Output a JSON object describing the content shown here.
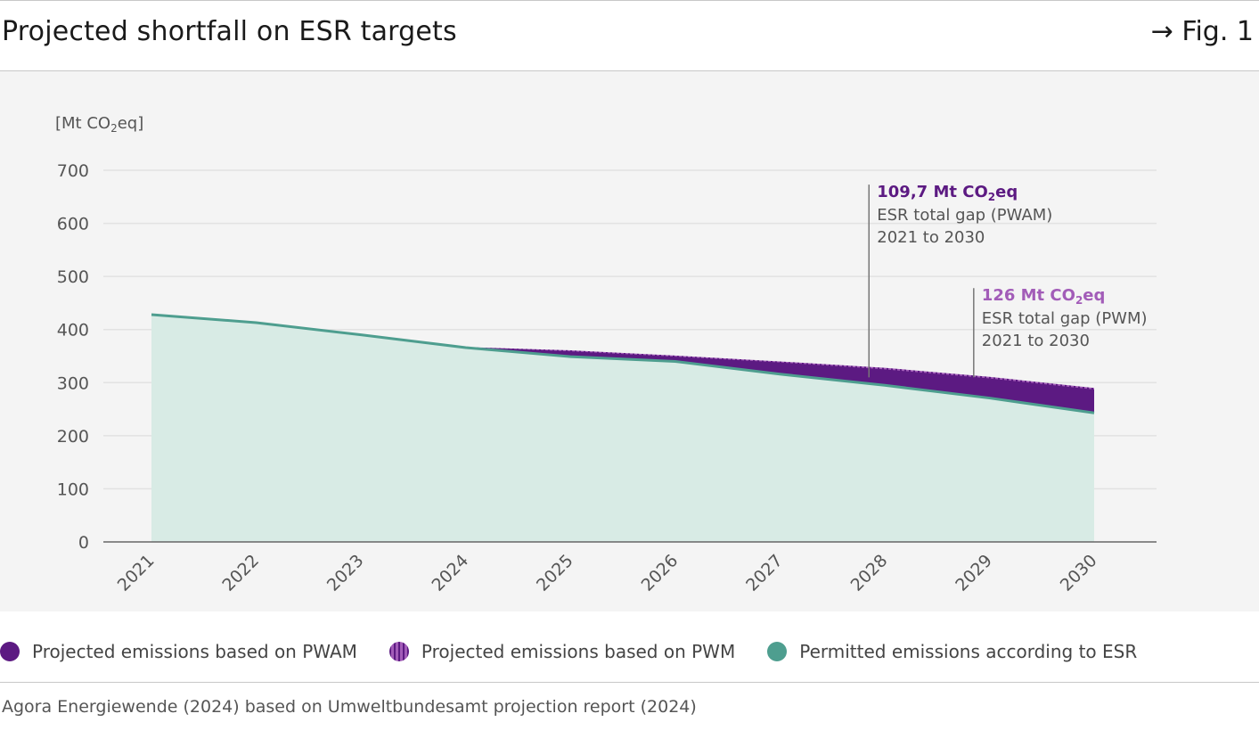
{
  "header": {
    "title": "Projected shortfall on ESR targets",
    "figure_label": "→ Fig. 1"
  },
  "colors": {
    "pwam": "#5c1a82",
    "pwm": "#a25cb8",
    "esr_line": "#4e9e8f",
    "esr_fill": "#d8ebe5",
    "grid": "#e2e2e2",
    "axis": "#666666",
    "annotation_pwam": "#5c1a82",
    "annotation_pwm": "#a25cb8"
  },
  "chart_data": {
    "type": "area",
    "unit_label": "[Mt CO2eq]",
    "categories": [
      "2021",
      "2022",
      "2023",
      "2024",
      "2025",
      "2026",
      "2027",
      "2028",
      "2029",
      "2030"
    ],
    "ylim": [
      0,
      700
    ],
    "yticks": [
      0,
      100,
      200,
      300,
      400,
      500,
      600,
      700
    ],
    "grid": true,
    "series": [
      {
        "name": "Permitted emissions according to ESR",
        "key": "esr",
        "values": [
          428,
          413,
          390,
          366,
          349,
          340,
          316,
          295,
          271,
          243
        ]
      },
      {
        "name": "Projected emissions based on PWM",
        "key": "pwm",
        "values": [
          null,
          null,
          null,
          367,
          361,
          351,
          340,
          328,
          311,
          290
        ]
      },
      {
        "name": "Projected emissions based on PWAM",
        "key": "pwam",
        "values": [
          null,
          null,
          null,
          367,
          359,
          349,
          338,
          325,
          308,
          287
        ]
      }
    ],
    "annotations": [
      {
        "key": "pwam",
        "value": "109,7 Mt CO2eq",
        "line1": "ESR total gap (PWAM)",
        "line2": "2021 to 2030",
        "x": 2027.85,
        "y_top": 673,
        "y_bottom": 310
      },
      {
        "key": "pwm",
        "value": "126 Mt CO2eq",
        "line1": "ESR total gap (PWM)",
        "line2": "2021 to 2030",
        "x": 2028.85,
        "y_top": 478,
        "y_bottom": 310
      }
    ]
  },
  "legend": [
    {
      "label": "Projected emissions based on PWAM",
      "key": "pwam",
      "style": "solid"
    },
    {
      "label": "Projected emissions based on PWM",
      "key": "pwm",
      "style": "striped"
    },
    {
      "label": "Permitted emissions according to ESR",
      "key": "esr",
      "style": "solid"
    }
  ],
  "source": "Agora Energiewende (2024) based on Umweltbundesamt projection report (2024)"
}
